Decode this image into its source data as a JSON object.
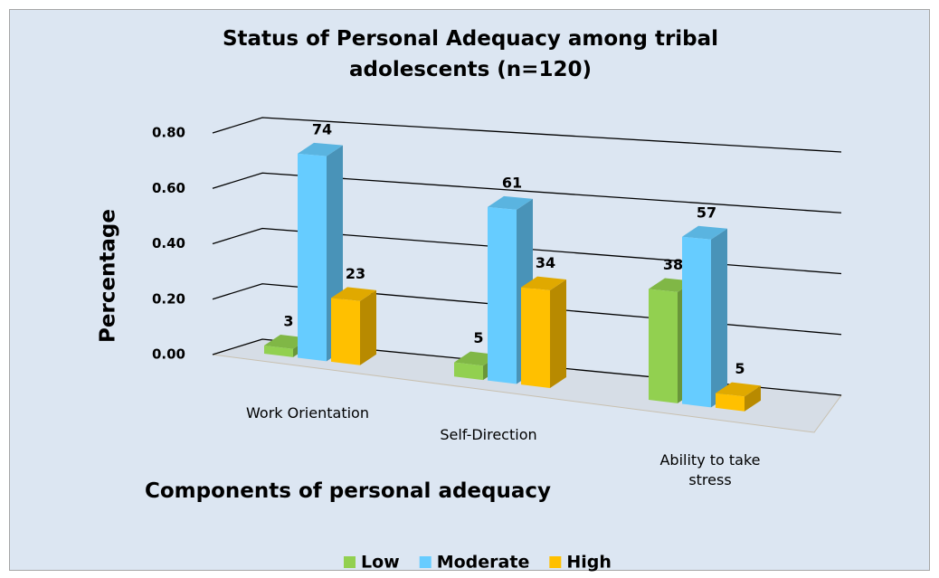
{
  "chart_data": {
    "type": "bar3d",
    "title": "Status of Personal Adequacy among tribal adolescents (n=120)",
    "x_label": "Components of personal adequacy",
    "y_label": "Percentage",
    "categories": [
      "Work Orientation",
      "Self-Direction",
      "Ability to take stress"
    ],
    "series": [
      {
        "name": "Low",
        "color": "#92d050",
        "values": [
          0.03,
          0.05,
          0.38
        ],
        "value_labels": [
          "3",
          "5",
          "38"
        ]
      },
      {
        "name": "Moderate",
        "color": "#66ccff",
        "values": [
          0.74,
          0.61,
          0.57
        ],
        "value_labels": [
          "74",
          "61",
          "57"
        ]
      },
      {
        "name": "High",
        "color": "#ffc000",
        "values": [
          0.23,
          0.34,
          0.05
        ],
        "value_labels": [
          "23",
          "34",
          "5"
        ]
      }
    ],
    "ylim": [
      0,
      0.8
    ],
    "yticks": [
      {
        "value": 0,
        "label": "0.00"
      },
      {
        "value": 0.2,
        "label": "0.20"
      },
      {
        "value": 0.4,
        "label": "0.40"
      },
      {
        "value": 0.6,
        "label": "0.60"
      },
      {
        "value": 0.8,
        "label": "0.80"
      }
    ],
    "legend": "bottom",
    "grid": true
  }
}
